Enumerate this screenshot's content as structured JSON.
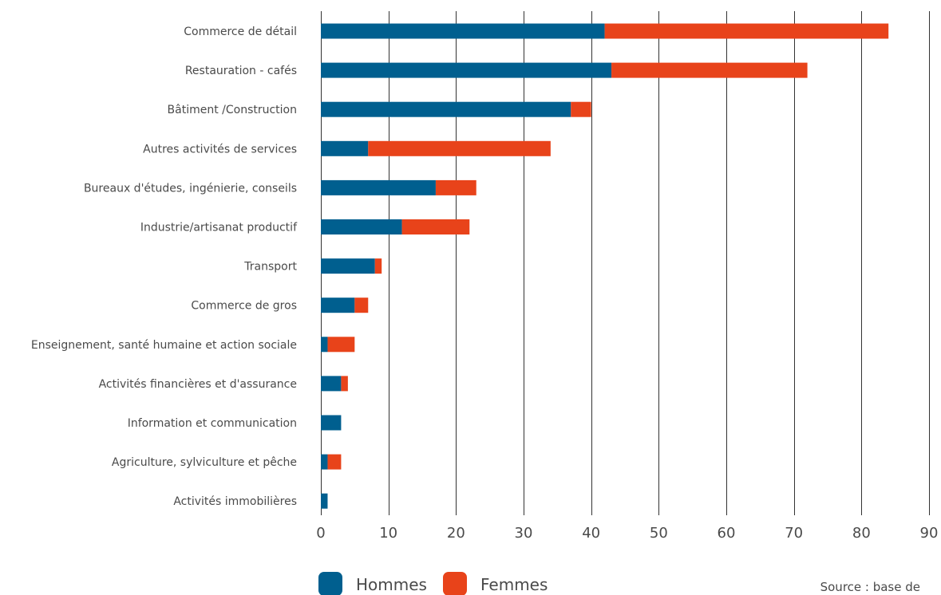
{
  "chart_data": {
    "type": "bar",
    "orientation": "horizontal",
    "stacked": true,
    "categories": [
      "Commerce de détail",
      "Restauration - cafés",
      "Bâtiment /Construction",
      "Autres activités de services",
      "Bureaux d'études, ingénierie, conseils",
      "Industrie/artisanat productif",
      "Transport",
      "Commerce de gros",
      "Enseignement, santé humaine et action sociale",
      "Activités financières et d'assurance",
      "Information et communication",
      "Agriculture, sylviculture et pêche",
      "Activités immobilières"
    ],
    "series": [
      {
        "name": "Hommes",
        "color": "#005f8f",
        "values": [
          42,
          43,
          37,
          7,
          17,
          12,
          8,
          5,
          1,
          3,
          3,
          1,
          1
        ]
      },
      {
        "name": "Femmes",
        "color": "#e8431a",
        "values": [
          42,
          29,
          3,
          27,
          6,
          10,
          1,
          2,
          4,
          1,
          0,
          2,
          0
        ]
      }
    ],
    "xlim": [
      0,
      90
    ],
    "xticks": [
      0,
      10,
      20,
      30,
      40,
      50,
      60,
      70,
      80,
      90
    ],
    "grid": true,
    "legend_position": "bottom"
  },
  "source_text": "Source : base de"
}
